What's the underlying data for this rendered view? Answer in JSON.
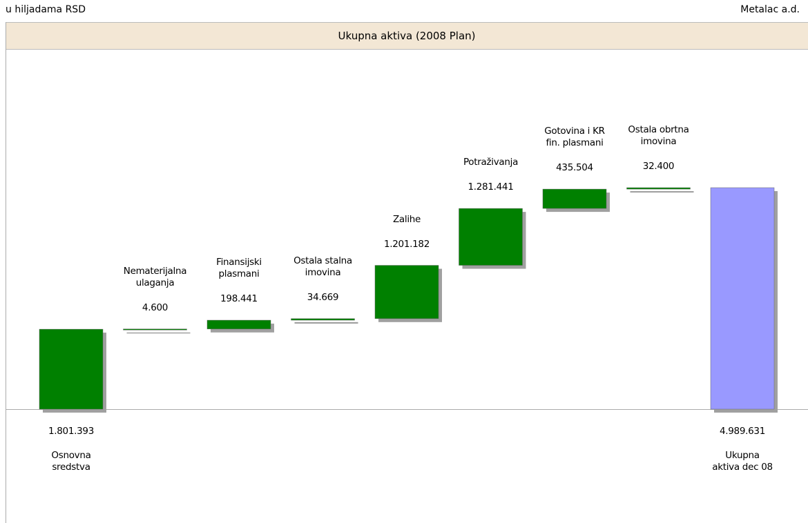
{
  "chart_data": {
    "type": "waterfall",
    "unit_note": "u hiljadama RSD",
    "company": "Metalac a.d.",
    "title": "Ukupna aktiva (2008 Plan)",
    "categories": [
      "Osnovna sredstva",
      "Nematerijalna ulaganja",
      "Finansijski plasmani",
      "Ostala stalna imovina",
      "Zalihe",
      "Potraživanja",
      "Gotovina i KR fin. plasmani",
      "Ostala obrtna imovina",
      "Ukupna aktiva dec 08"
    ],
    "values": [
      1801393,
      4600,
      198441,
      34669,
      1201182,
      1281441,
      435504,
      32400,
      4989631
    ],
    "value_labels": [
      "1.801.393",
      "4.600",
      "198.441",
      "34.669",
      "1.201.182",
      "1.281.441",
      "435.504",
      "32.400",
      "4.989.631"
    ],
    "color": "#008000",
    "total_color": "#9999ff"
  }
}
